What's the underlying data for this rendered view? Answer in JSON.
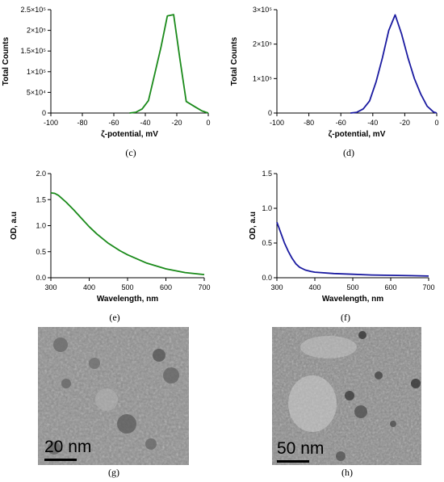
{
  "chart_data": [
    {
      "id": "c",
      "type": "line",
      "caption": "(c)",
      "xlabel": "ζ-potential, mV",
      "ylabel": "Total Counts",
      "xlim": [
        -100,
        0
      ],
      "ylim": [
        0,
        250000
      ],
      "x_ticks": [
        -100,
        -80,
        -60,
        -40,
        -20,
        0
      ],
      "y_ticks": [
        {
          "value": 0,
          "label": "0"
        },
        {
          "value": 50000,
          "label": "5×10⁴"
        },
        {
          "value": 100000,
          "label": "1×10⁵"
        },
        {
          "value": 150000,
          "label": "1.5×10⁵"
        },
        {
          "value": 200000,
          "label": "2×10⁵"
        },
        {
          "value": 250000,
          "label": "2.5×10⁵"
        }
      ],
      "color": "#1a8a1a",
      "series": [
        {
          "x": [
            -50,
            -46,
            -42,
            -38,
            -34,
            -30,
            -26,
            -22,
            -18,
            -14,
            -8,
            -4,
            0
          ],
          "y": [
            0,
            2000,
            10000,
            30000,
            95000,
            160000,
            235000,
            238000,
            130000,
            28000,
            14000,
            5000,
            0
          ]
        }
      ]
    },
    {
      "id": "d",
      "type": "line",
      "caption": "(d)",
      "xlabel": "ζ-potential, mV",
      "ylabel": "Total Counts",
      "xlim": [
        -100,
        0
      ],
      "ylim": [
        0,
        300000
      ],
      "x_ticks": [
        -100,
        -80,
        -60,
        -40,
        -20,
        0
      ],
      "y_ticks": [
        {
          "value": 0,
          "label": "0"
        },
        {
          "value": 100000,
          "label": "1×10⁵"
        },
        {
          "value": 200000,
          "label": "2×10⁵"
        },
        {
          "value": 300000,
          "label": "3×10⁵"
        }
      ],
      "color": "#1a1aa0",
      "series": [
        {
          "x": [
            -54,
            -50,
            -46,
            -42,
            -38,
            -34,
            -30,
            -26,
            -22,
            -18,
            -14,
            -10,
            -6,
            -2,
            0
          ],
          "y": [
            0,
            2000,
            12000,
            35000,
            90000,
            160000,
            240000,
            285000,
            230000,
            160000,
            100000,
            55000,
            20000,
            3000,
            0
          ]
        }
      ]
    },
    {
      "id": "e",
      "type": "line",
      "caption": "(e)",
      "xlabel": "Wavelength, nm",
      "ylabel": "OD, a.u",
      "xlim": [
        300,
        700
      ],
      "ylim": [
        0,
        2.0
      ],
      "x_ticks": [
        300,
        400,
        500,
        600,
        700
      ],
      "y_ticks": [
        {
          "value": 0,
          "label": "0.0"
        },
        {
          "value": 0.5,
          "label": "0.5"
        },
        {
          "value": 1.0,
          "label": "1.0"
        },
        {
          "value": 1.5,
          "label": "1.5"
        },
        {
          "value": 2.0,
          "label": "2.0"
        }
      ],
      "color": "#1a8a1a",
      "series": [
        {
          "x": [
            300,
            310,
            320,
            340,
            360,
            380,
            400,
            420,
            450,
            480,
            500,
            550,
            600,
            650,
            700
          ],
          "y": [
            1.63,
            1.62,
            1.58,
            1.45,
            1.3,
            1.14,
            0.98,
            0.84,
            0.66,
            0.52,
            0.44,
            0.28,
            0.17,
            0.1,
            0.06
          ]
        }
      ]
    },
    {
      "id": "f",
      "type": "line",
      "caption": "(f)",
      "xlabel": "Wavelength, nm",
      "ylabel": "OD, a.u",
      "xlim": [
        300,
        700
      ],
      "ylim": [
        0,
        1.5
      ],
      "x_ticks": [
        300,
        400,
        500,
        600,
        700
      ],
      "y_ticks": [
        {
          "value": 0,
          "label": "0.0"
        },
        {
          "value": 0.5,
          "label": "0.5"
        },
        {
          "value": 1.0,
          "label": "1.0"
        },
        {
          "value": 1.5,
          "label": "1.5"
        }
      ],
      "color": "#1a1aa0",
      "series": [
        {
          "x": [
            300,
            310,
            320,
            330,
            340,
            350,
            360,
            375,
            390,
            400,
            450,
            500,
            550,
            600,
            650,
            700
          ],
          "y": [
            0.8,
            0.65,
            0.5,
            0.38,
            0.28,
            0.2,
            0.15,
            0.11,
            0.09,
            0.08,
            0.06,
            0.05,
            0.04,
            0.035,
            0.03,
            0.025
          ]
        }
      ]
    }
  ],
  "images": [
    {
      "id": "g",
      "caption": "(g)",
      "scalebar": "20 nm"
    },
    {
      "id": "h",
      "caption": "(h)",
      "scalebar": "50 nm"
    }
  ]
}
